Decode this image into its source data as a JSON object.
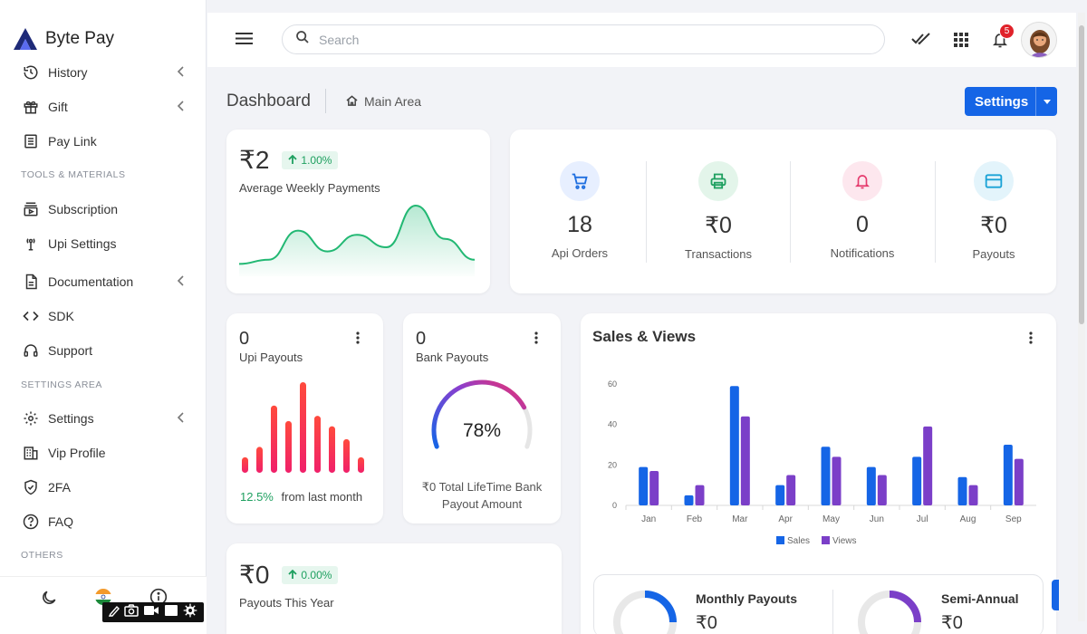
{
  "brand": {
    "name": "Byte Pay"
  },
  "sidebar": {
    "items": [
      {
        "label": "History"
      },
      {
        "label": "Gift"
      },
      {
        "label": "Pay Link"
      },
      {
        "label": "Subscription"
      },
      {
        "label": "Upi Settings"
      },
      {
        "label": "Documentation"
      },
      {
        "label": "SDK"
      },
      {
        "label": "Support"
      },
      {
        "label": "Settings"
      },
      {
        "label": "Vip Profile"
      },
      {
        "label": "2FA"
      },
      {
        "label": "FAQ"
      }
    ],
    "sections": [
      "TOOLS & MATERIALS",
      "SETTINGS AREA",
      "OTHERS"
    ]
  },
  "topbar": {
    "search_placeholder": "Search",
    "notification_count": "5"
  },
  "header": {
    "title": "Dashboard",
    "breadcrumb": "Main Area",
    "settings_label": "Settings"
  },
  "weekly": {
    "value": "₹2",
    "change": "1.00%",
    "label": "Average Weekly Payments"
  },
  "stats": [
    {
      "value": "18",
      "label": "Api Orders",
      "color": "#1f6fe0",
      "bg": "#e7efff"
    },
    {
      "value": "₹0",
      "label": "Transactions",
      "color": "#1fa060",
      "bg": "#e3f5ea"
    },
    {
      "value": "0",
      "label": "Notifications",
      "color": "#e53b6d",
      "bg": "#fde7ee"
    },
    {
      "value": "₹0",
      "label": "Payouts",
      "color": "#1aa2d6",
      "bg": "#e3f4fb"
    }
  ],
  "upi": {
    "value": "0",
    "label": "Upi Payouts",
    "change": "12.5%",
    "change_text": "from last month"
  },
  "bank": {
    "value": "0",
    "label": "Bank Payouts",
    "percent_text": "78%",
    "percent": 78,
    "footer": "₹0 Total LifeTime Bank Payout Amount"
  },
  "year": {
    "value": "₹0",
    "change": "0.00%",
    "label": "Payouts This Year"
  },
  "sales": {
    "title": "Sales & Views"
  },
  "payout_tabs": {
    "monthly": "Monthly Payouts",
    "semi": "Semi-Annual",
    "monthly_value": "₹0",
    "semi_value": "₹0"
  },
  "chart_data": {
    "type": "bar",
    "categories": [
      "Jan",
      "Feb",
      "Mar",
      "Apr",
      "May",
      "Jun",
      "Jul",
      "Aug",
      "Sep"
    ],
    "series": [
      {
        "name": "Sales",
        "values": [
          19,
          5,
          59,
          10,
          29,
          19,
          24,
          14,
          30
        ],
        "color": "#1565e6"
      },
      {
        "name": "Views",
        "values": [
          17,
          10,
          44,
          15,
          24,
          15,
          39,
          10,
          23
        ],
        "color": "#7b3fc8"
      }
    ],
    "yticks": [
      0,
      20,
      40,
      60
    ],
    "ylim": [
      0,
      60
    ],
    "legend": "bottom"
  },
  "upi_bars": [
    6,
    10,
    26,
    20,
    35,
    22,
    18,
    13,
    6
  ],
  "weekly_curve": [
    2,
    3,
    10,
    5,
    9,
    6,
    16,
    8,
    3
  ]
}
